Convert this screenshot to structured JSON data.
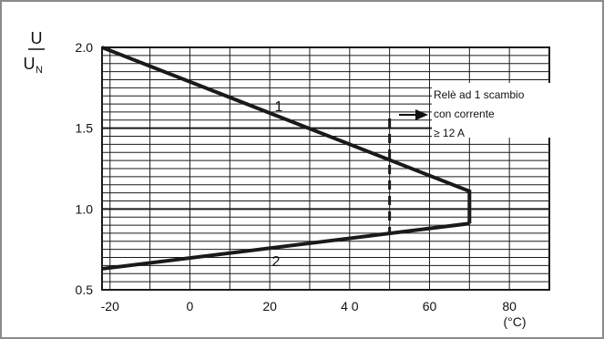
{
  "chart_data": {
    "type": "line",
    "y_title": {
      "numerator": "U",
      "denominator_main": "U",
      "denominator_sub": "N"
    },
    "x_unit": "(°C)",
    "xlim": [
      -22,
      90
    ],
    "ylim": [
      0.5,
      2.0
    ],
    "x_tick_values": [
      -20,
      0,
      20,
      40,
      60,
      80
    ],
    "x_tick_labels": [
      "-20",
      "0",
      "20",
      "4 0",
      "60",
      "80"
    ],
    "y_tick_values": [
      0.5,
      1.0,
      1.5,
      2.0
    ],
    "y_tick_labels": [
      "0.5",
      "1.0",
      "1.5",
      "2.0"
    ],
    "grid": true,
    "series": [
      {
        "name": "1",
        "x": [
          -22,
          70,
          70
        ],
        "y": [
          2.0,
          1.11,
          0.91
        ]
      },
      {
        "name": "2",
        "x": [
          -22,
          70
        ],
        "y": [
          0.63,
          0.91
        ]
      }
    ],
    "threshold": {
      "x": 50,
      "y_range": [
        0.84,
        1.56
      ]
    },
    "annotation": {
      "lines": [
        "Relè ad 1 scambio",
        "con corrente",
        "≥ 12 A"
      ],
      "arrow": "right"
    },
    "colors": {
      "line": "#1a1a1a",
      "grid": "#1a1a1a",
      "border": "#8a8a8a"
    }
  }
}
